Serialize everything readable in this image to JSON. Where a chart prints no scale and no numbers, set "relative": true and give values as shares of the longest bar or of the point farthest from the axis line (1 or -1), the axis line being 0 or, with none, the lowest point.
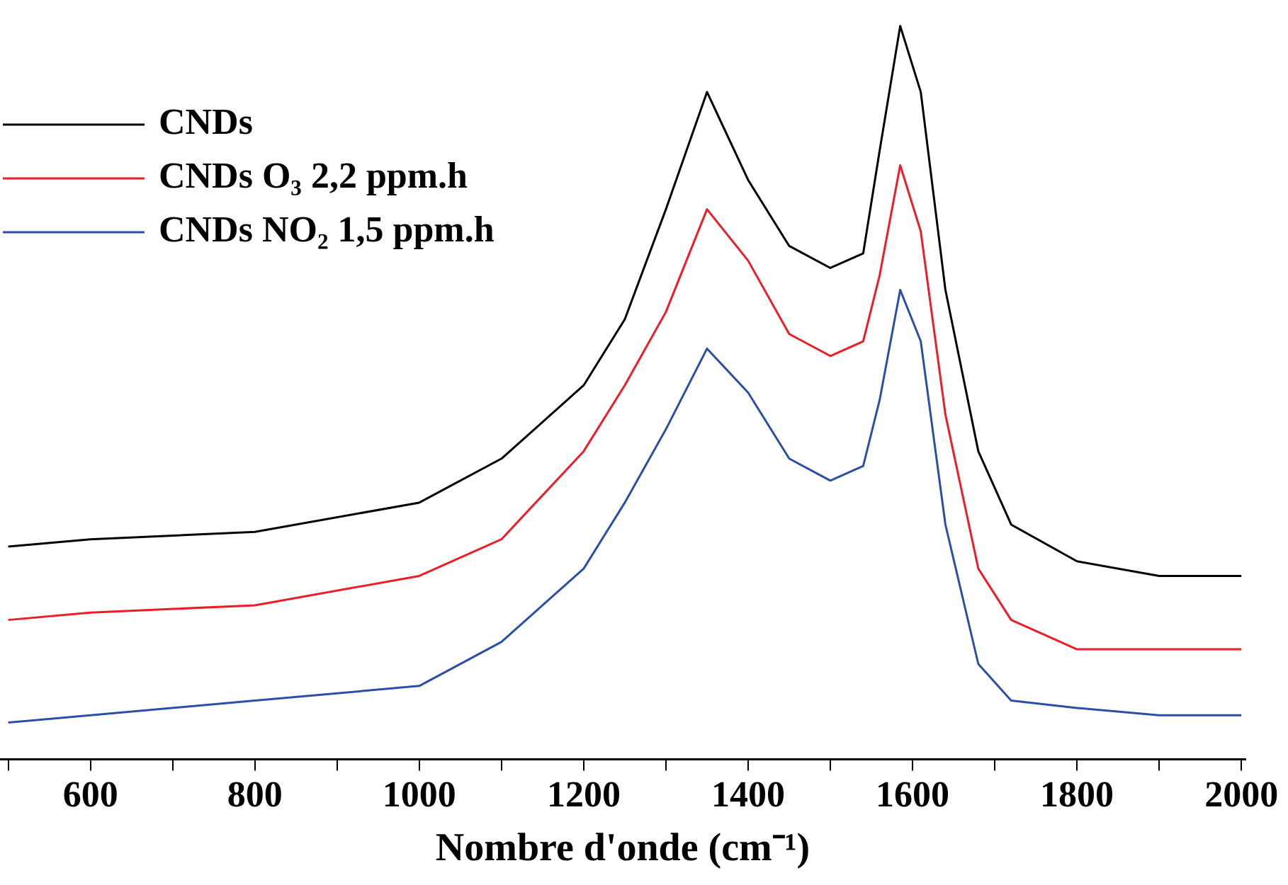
{
  "chart_data": {
    "type": "line",
    "xlabel": "Nombre d'onde (cm⁻¹)",
    "relative": true,
    "grid": false,
    "legend": "top left",
    "marker": "none",
    "line_style": "solid",
    "x": [
      500,
      600,
      800,
      1000,
      1100,
      1200,
      1250,
      1300,
      1350,
      1400,
      1450,
      1500,
      1540,
      1560,
      1585,
      1610,
      1640,
      1680,
      1720,
      1800,
      1900,
      2000
    ],
    "xlim": [
      490,
      2005
    ],
    "xticks": [
      {
        "value": 500,
        "label": null
      },
      600,
      {
        "value": 700,
        "label": null
      },
      800,
      {
        "value": 900,
        "label": null
      },
      1000,
      {
        "value": 1100,
        "label": null
      },
      1200,
      {
        "value": 1300,
        "label": null
      },
      1400,
      {
        "value": 1500,
        "label": null
      },
      1600,
      {
        "value": 1700,
        "label": null
      },
      1800,
      {
        "value": 1900,
        "label": null
      },
      2000
    ],
    "series": [
      {
        "name": "CNDs",
        "color": "#000000",
        "values": [
          0.29,
          0.3,
          0.31,
          0.35,
          0.41,
          0.51,
          0.6,
          0.75,
          0.91,
          0.79,
          0.7,
          0.67,
          0.69,
          0.83,
          1,
          0.91,
          0.64,
          0.42,
          0.32,
          0.27,
          0.25,
          0.25
        ]
      },
      {
        "name": "CNDs O₃ 2,2 ppm.h",
        "color": "#ee1c25",
        "values": [
          0.19,
          0.2,
          0.21,
          0.25,
          0.3,
          0.42,
          0.51,
          0.61,
          0.75,
          0.68,
          0.58,
          0.55,
          0.57,
          0.66,
          0.81,
          0.72,
          0.47,
          0.26,
          0.19,
          0.15,
          0.15,
          0.15
        ]
      },
      {
        "name": "CNDs NO₂ 1,5 ppm.h",
        "color": "#2b4fa8",
        "values": [
          0.05,
          0.06,
          0.08,
          0.1,
          0.16,
          0.26,
          0.35,
          0.45,
          0.56,
          0.5,
          0.41,
          0.38,
          0.4,
          0.49,
          0.64,
          0.57,
          0.32,
          0.13,
          0.08,
          0.07,
          0.06,
          0.06
        ]
      }
    ]
  }
}
